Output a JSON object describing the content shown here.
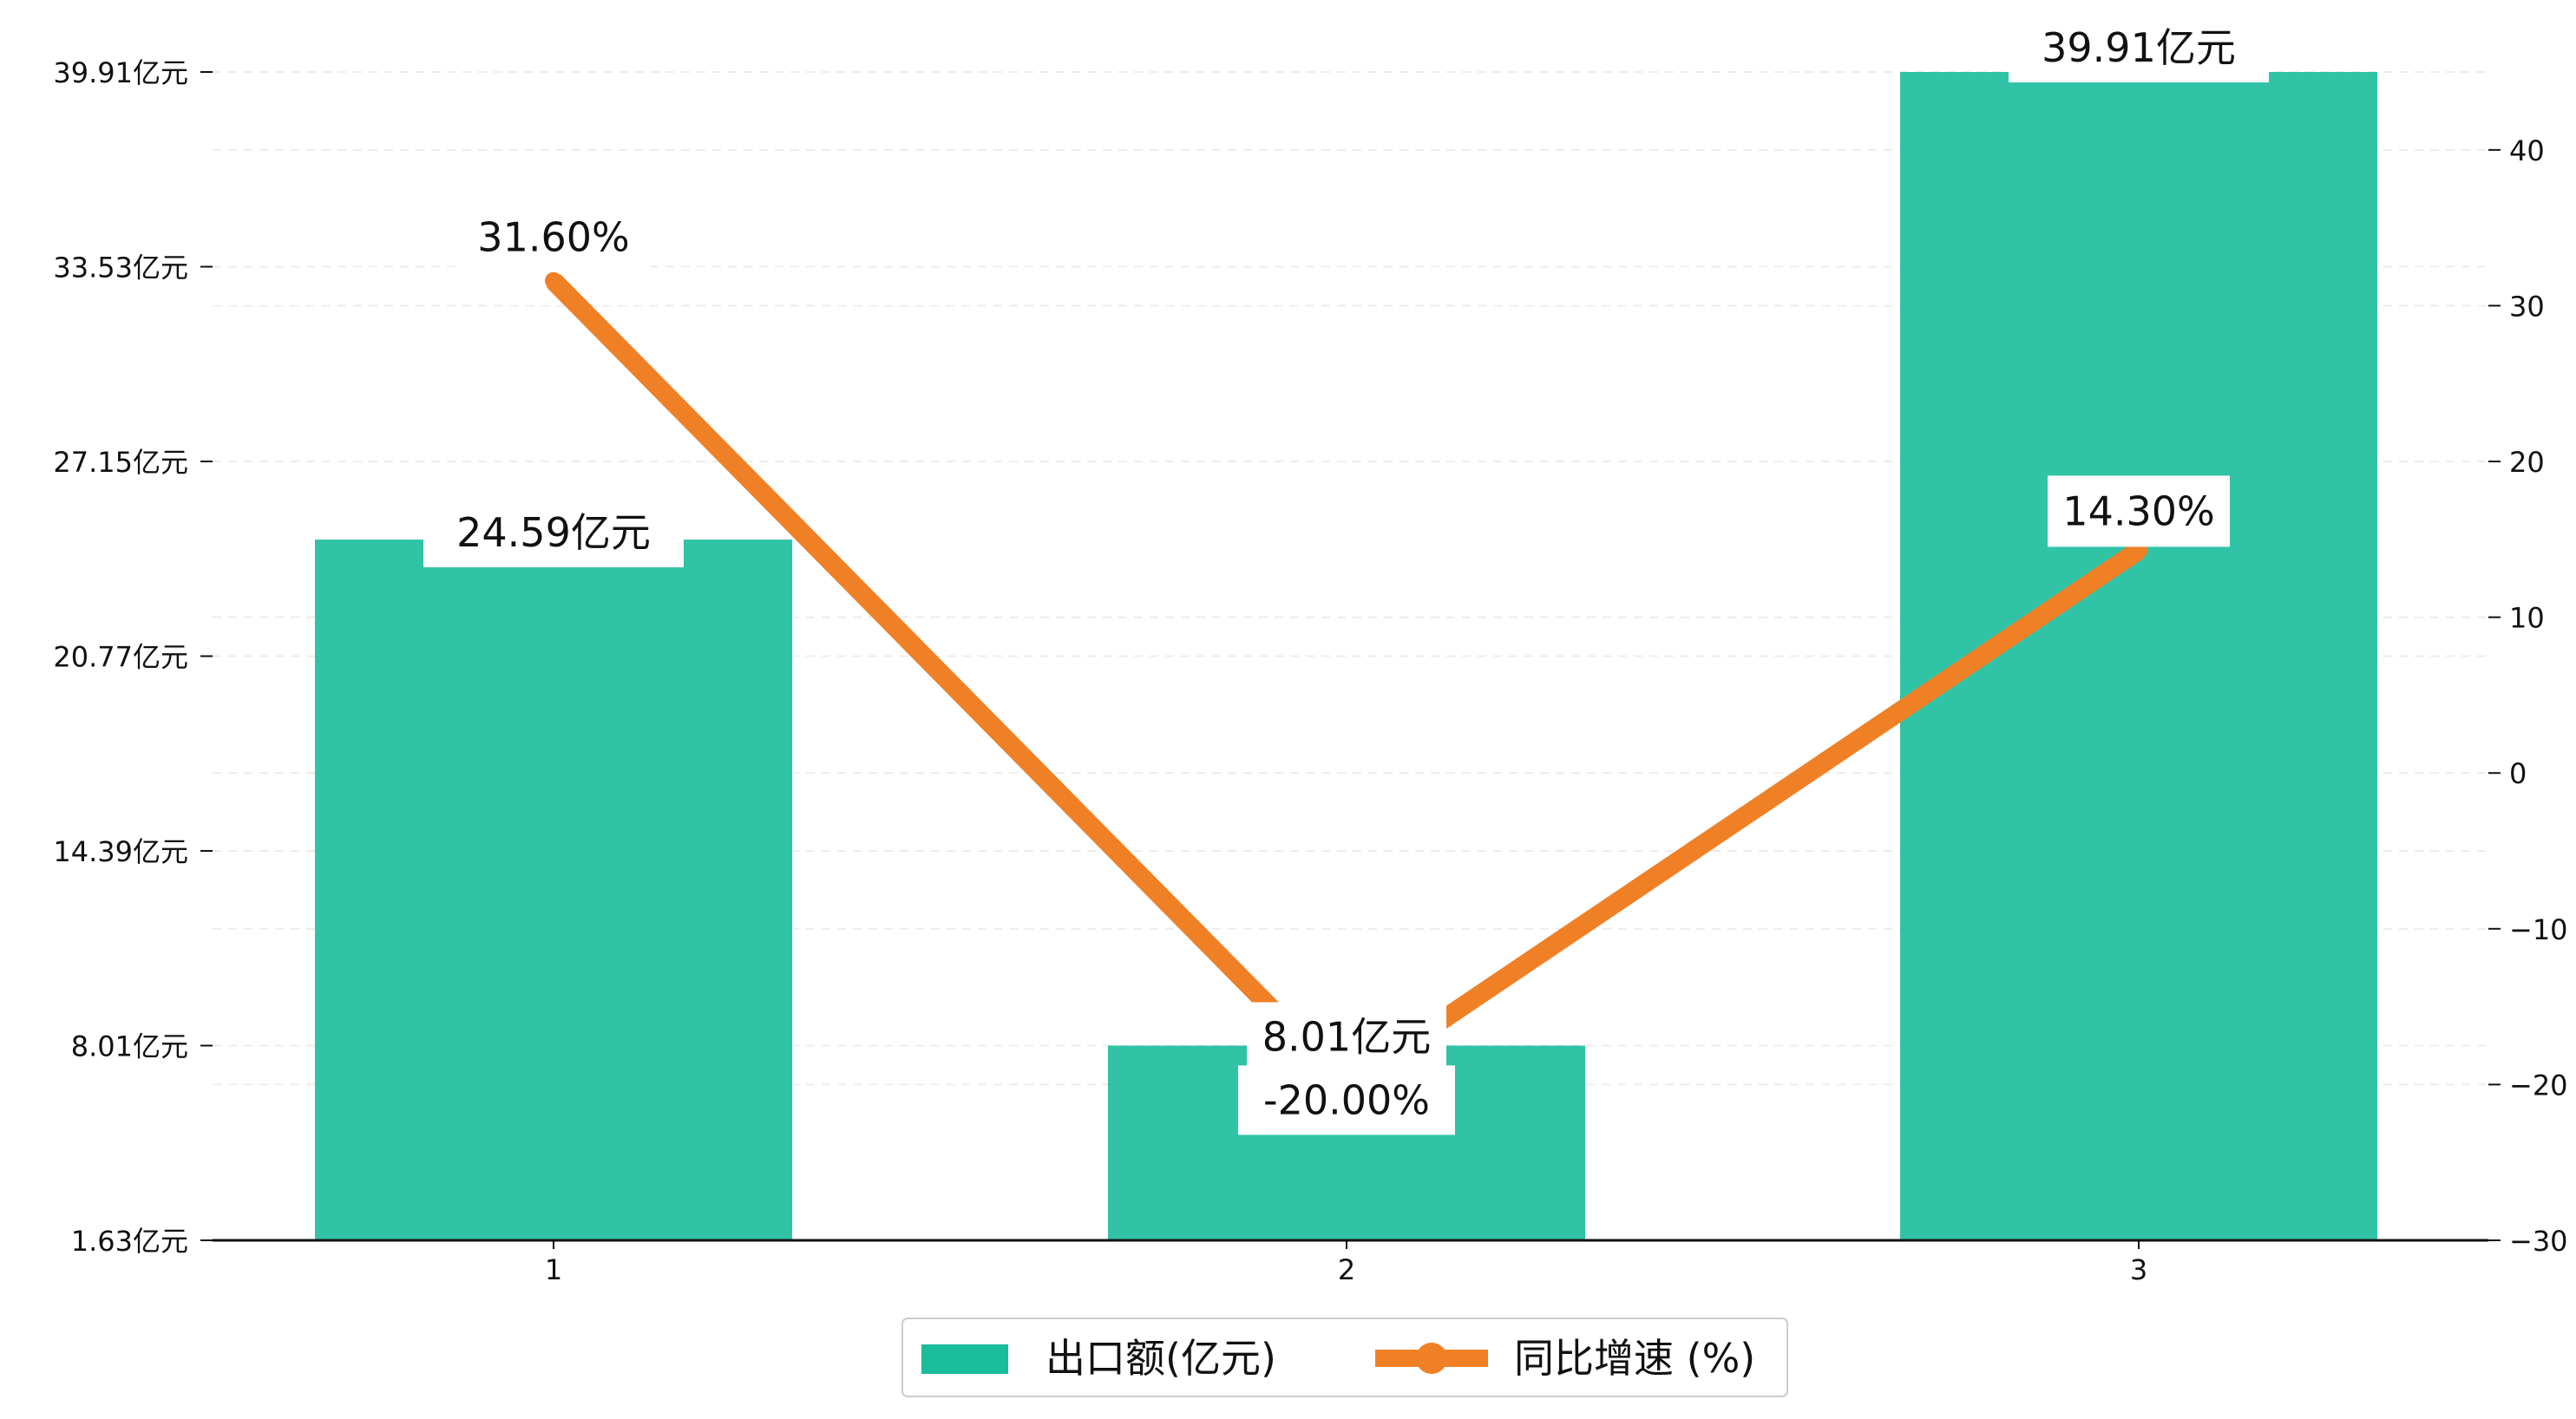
{
  "chart_data": {
    "type": "bar+line",
    "title": "",
    "xlabel": "",
    "ylabel": "",
    "categories": [
      "1",
      "2",
      "3"
    ],
    "series": [
      {
        "name": "出口额(亿元)",
        "type": "bar",
        "axis": "left",
        "color": "#1ABC9C",
        "values": [
          24.59,
          8.01,
          39.91
        ],
        "labels": [
          "24.59亿元",
          "8.01亿元",
          "39.91亿元"
        ]
      },
      {
        "name": "同比增速 (%)",
        "type": "line",
        "axis": "right",
        "color": "#F08026",
        "values": [
          31.6,
          -20.0,
          14.3
        ],
        "labels": [
          "31.60%",
          "-20.00%",
          "14.30%"
        ]
      }
    ],
    "y_left": {
      "ylim": [
        1.63,
        39.91
      ],
      "ticks": [
        1.63,
        8.01,
        14.39,
        20.77,
        27.15,
        33.53,
        39.91
      ],
      "tick_labels": [
        "1.63亿元",
        "8.01亿元",
        "14.39亿元",
        "20.77亿元",
        "27.15亿元",
        "33.53亿元",
        "39.91亿元"
      ]
    },
    "y_right": {
      "ylim": [
        -30,
        43.5
      ],
      "ticks": [
        -30,
        -20,
        -10,
        0,
        10,
        20,
        30,
        40
      ],
      "tick_labels": [
        "−30",
        "−20",
        "−10",
        "0",
        "10",
        "20",
        "30",
        "40"
      ]
    },
    "grid": "horizontal dashed",
    "legend_position": "bottom-center"
  }
}
